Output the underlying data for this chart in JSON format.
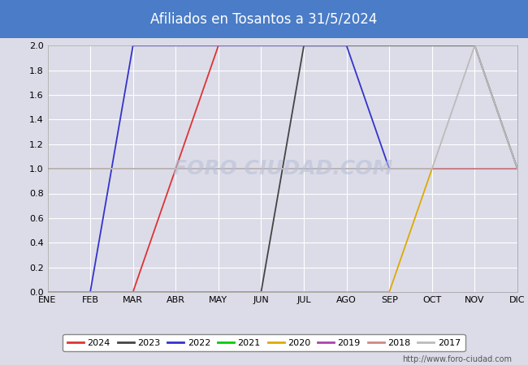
{
  "title": "Afiliados en Tosantos a 31/5/2024",
  "title_bg_color": "#4a7cc7",
  "title_text_color": "#ffffff",
  "x_labels": [
    "ENE",
    "FEB",
    "MAR",
    "ABR",
    "MAY",
    "JUN",
    "JUL",
    "AGO",
    "SEP",
    "OCT",
    "NOV",
    "DIC"
  ],
  "ylim": [
    0.0,
    2.0
  ],
  "yticks": [
    0.0,
    0.2,
    0.4,
    0.6,
    0.8,
    1.0,
    1.2,
    1.4,
    1.6,
    1.8,
    2.0
  ],
  "plot_bg_color": "#dcdce8",
  "fig_bg_color": "#dcdce8",
  "watermark": "FORO CIUDAD.COM",
  "url": "http://www.foro-ciudad.com",
  "series": [
    {
      "label": "2024",
      "color": "#dd3333",
      "data": [
        [
          1,
          0
        ],
        [
          2,
          0
        ],
        [
          3,
          0
        ],
        [
          4,
          1
        ],
        [
          5,
          2
        ]
      ]
    },
    {
      "label": "2023",
      "color": "#444444",
      "data": [
        [
          1,
          0
        ],
        [
          2,
          0
        ],
        [
          3,
          0
        ],
        [
          4,
          0
        ],
        [
          5,
          0
        ],
        [
          6,
          0
        ],
        [
          7,
          2
        ],
        [
          8,
          2
        ],
        [
          9,
          2
        ],
        [
          10,
          2
        ],
        [
          11,
          2
        ],
        [
          12,
          1
        ]
      ]
    },
    {
      "label": "2022",
      "color": "#3333cc",
      "data": [
        [
          1,
          0
        ],
        [
          2,
          0
        ],
        [
          3,
          2
        ],
        [
          4,
          2
        ],
        [
          5,
          2
        ],
        [
          6,
          2
        ],
        [
          7,
          2
        ],
        [
          8,
          2
        ],
        [
          9,
          1
        ],
        [
          10,
          1
        ],
        [
          11,
          1
        ],
        [
          12,
          1
        ]
      ]
    },
    {
      "label": "2021",
      "color": "#00cc00",
      "data": [
        [
          1,
          1
        ],
        [
          2,
          1
        ],
        [
          3,
          1
        ],
        [
          4,
          1
        ],
        [
          5,
          1
        ],
        [
          6,
          1
        ],
        [
          7,
          1
        ],
        [
          8,
          1
        ],
        [
          9,
          1
        ],
        [
          10,
          1
        ],
        [
          11,
          1
        ],
        [
          12,
          1
        ]
      ]
    },
    {
      "label": "2020",
      "color": "#ddaa00",
      "data": [
        [
          1,
          0
        ],
        [
          2,
          0
        ],
        [
          3,
          0
        ],
        [
          4,
          0
        ],
        [
          5,
          0
        ],
        [
          6,
          0
        ],
        [
          7,
          0
        ],
        [
          8,
          0
        ],
        [
          9,
          0
        ],
        [
          10,
          1
        ],
        [
          11,
          1
        ],
        [
          12,
          1
        ]
      ]
    },
    {
      "label": "2019",
      "color": "#aa44aa",
      "data": [
        [
          1,
          1
        ],
        [
          2,
          1
        ],
        [
          3,
          1
        ],
        [
          4,
          1
        ],
        [
          5,
          1
        ],
        [
          6,
          1
        ],
        [
          7,
          1
        ],
        [
          8,
          1
        ],
        [
          9,
          1
        ],
        [
          10,
          1
        ],
        [
          11,
          1
        ],
        [
          12,
          1
        ]
      ]
    },
    {
      "label": "2018",
      "color": "#cc8888",
      "data": [
        [
          1,
          1
        ],
        [
          2,
          1
        ],
        [
          3,
          1
        ],
        [
          4,
          1
        ],
        [
          5,
          1
        ],
        [
          6,
          1
        ],
        [
          7,
          1
        ],
        [
          8,
          1
        ],
        [
          9,
          1
        ],
        [
          10,
          1
        ],
        [
          11,
          1
        ],
        [
          12,
          1
        ]
      ]
    },
    {
      "label": "2017",
      "color": "#bbbbbb",
      "data": [
        [
          1,
          1
        ],
        [
          2,
          1
        ],
        [
          3,
          1
        ],
        [
          4,
          1
        ],
        [
          5,
          1
        ],
        [
          6,
          1
        ],
        [
          7,
          1
        ],
        [
          8,
          1
        ],
        [
          9,
          1
        ],
        [
          10,
          1
        ],
        [
          11,
          2
        ],
        [
          12,
          1
        ]
      ]
    }
  ],
  "legend_ncol": 8,
  "grid_color": "#ffffff",
  "grid_linewidth": 0.8
}
